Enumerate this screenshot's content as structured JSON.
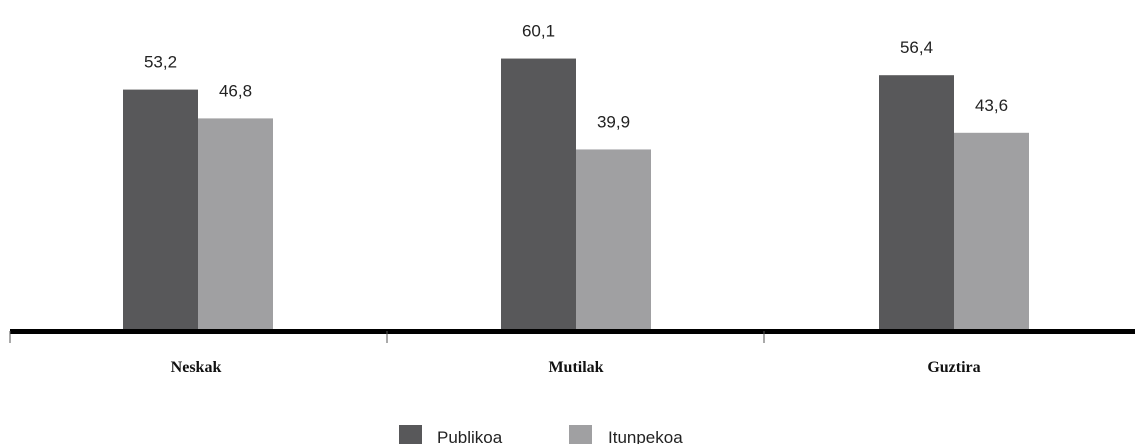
{
  "chart_data": {
    "type": "bar",
    "categories": [
      "Neskak",
      "Mutilak",
      "Guztira"
    ],
    "series": [
      {
        "name": "Publikoa",
        "values": [
          53.2,
          60.1,
          56.4
        ],
        "color": "#58585a"
      },
      {
        "name": "Itunpekoa",
        "values": [
          46.8,
          39.9,
          43.6
        ],
        "color": "#a0a0a2"
      }
    ],
    "value_labels": [
      [
        "53,2",
        "60,1",
        "56,4"
      ],
      [
        "46,8",
        "39,9",
        "43,6"
      ]
    ],
    "ylim": [
      0,
      62
    ],
    "grid": false,
    "legend": "bottom-center"
  }
}
